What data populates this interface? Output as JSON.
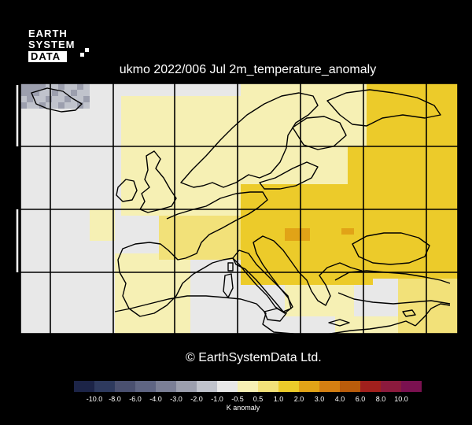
{
  "logo": {
    "line1": "EARTH",
    "line2": "SYSTEM",
    "line3": "DATA"
  },
  "title": "ukmo 2022/006 Jul 2m_temperature_anomaly",
  "copyright": "© EarthSystemData Ltd.",
  "colorbar": {
    "label": "K anomaly",
    "ticks": [
      "-10.0",
      "-8.0",
      "-6.0",
      "-4.0",
      "-3.0",
      "-2.0",
      "-1.0",
      "-0.5",
      "0.5",
      "1.0",
      "2.0",
      "3.0",
      "4.0",
      "6.0",
      "8.0",
      "10.0"
    ],
    "colors": [
      "#1c2447",
      "#2e3a5e",
      "#4a5070",
      "#5f6583",
      "#7b7f96",
      "#9c9fae",
      "#c0c3cc",
      "#e8e8e8",
      "#f6f0b4",
      "#f2e179",
      "#eccb2a",
      "#e1a317",
      "#d47f12",
      "#b95c0b",
      "#a1201d",
      "#8b1a3d",
      "#7a1150"
    ]
  },
  "legend_palette": {
    "near_zero": "#e8e8e8",
    "warm_light": "#f6f0b4",
    "warm": "#f2e179",
    "warmer": "#eccb2a",
    "hot": "#e1a317",
    "cool": "#9c9fae"
  }
}
